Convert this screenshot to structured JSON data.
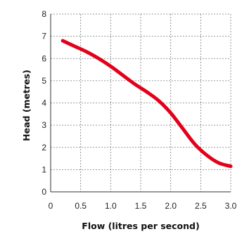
{
  "chart_data": {
    "type": "line",
    "title": "",
    "xlabel": "Flow (litres per second)",
    "ylabel": "Head (metres)",
    "xlim": [
      0,
      3.0
    ],
    "ylim": [
      0,
      8
    ],
    "x_ticks": [
      "0",
      "0.5",
      "1.0",
      "1.5",
      "2.0",
      "2.5",
      "3.0"
    ],
    "y_ticks": [
      "0",
      "1",
      "2",
      "3",
      "4",
      "5",
      "6",
      "7",
      "8"
    ],
    "grid": true,
    "legend": "none",
    "line_color": "#e3001b",
    "series": [
      {
        "x": [
          0.2,
          0.4,
          0.6,
          0.8,
          1.0,
          1.2,
          1.4,
          1.6,
          1.8,
          2.0,
          2.2,
          2.4,
          2.6,
          2.8,
          3.0
        ],
        "y": [
          6.8,
          6.55,
          6.3,
          6.0,
          5.65,
          5.25,
          4.85,
          4.5,
          4.1,
          3.55,
          2.85,
          2.15,
          1.65,
          1.3,
          1.15
        ]
      }
    ]
  }
}
